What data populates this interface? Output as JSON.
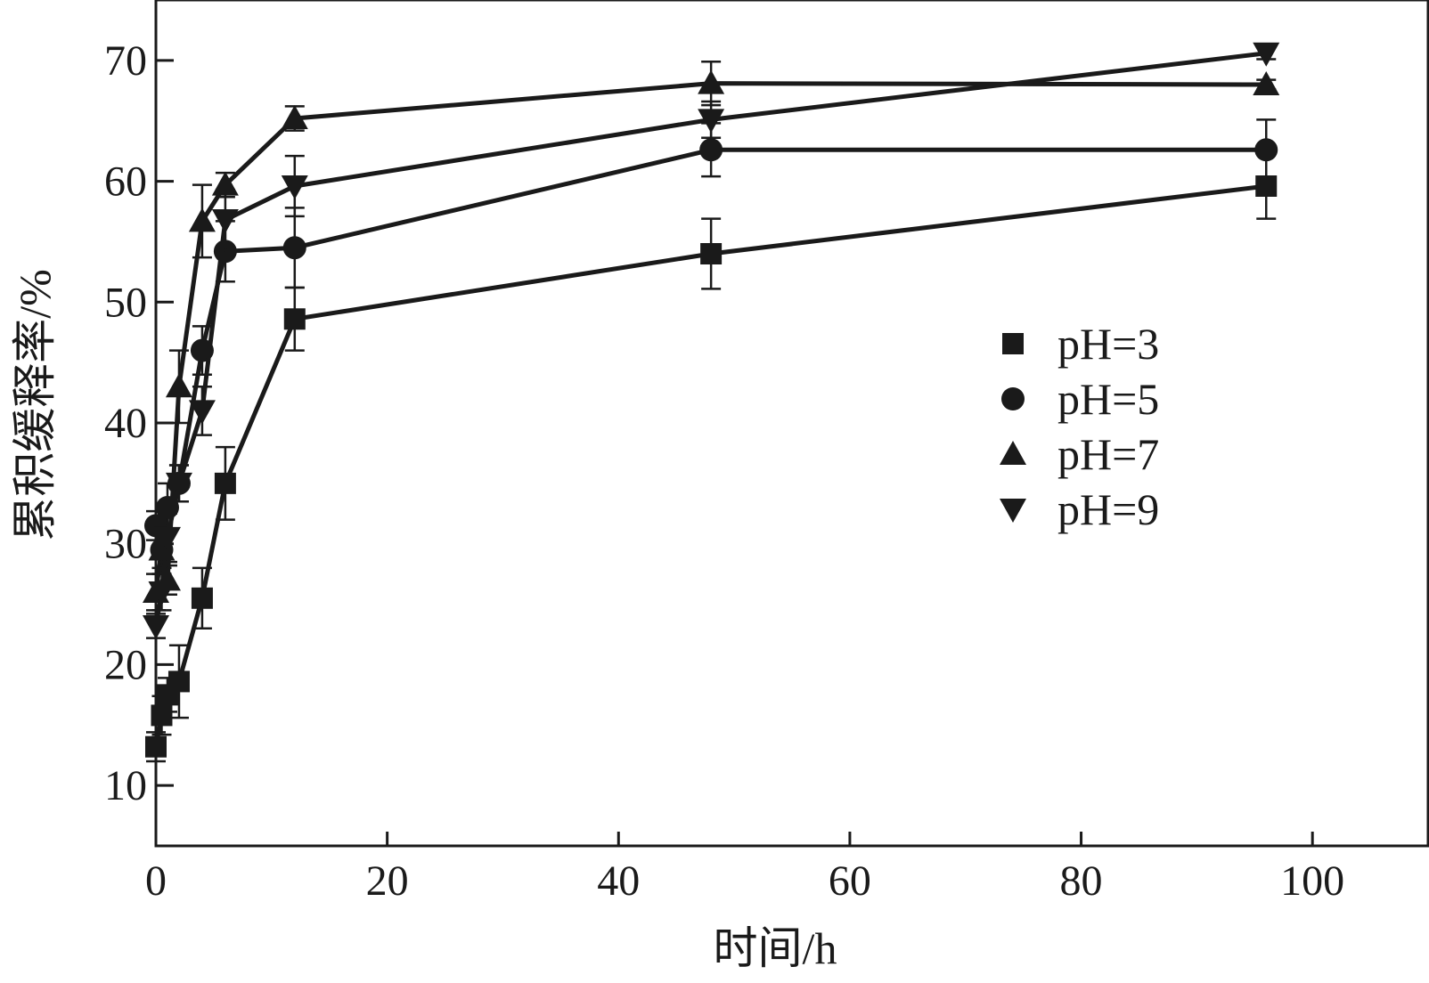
{
  "chart_data": {
    "type": "line",
    "title": "",
    "xlabel": "时间/h",
    "ylabel": "累积缓释率/%",
    "xlim": [
      0,
      110
    ],
    "ylim": [
      5,
      75
    ],
    "x_ticks": [
      0,
      20,
      40,
      60,
      80,
      100
    ],
    "y_ticks": [
      10,
      20,
      30,
      40,
      50,
      60,
      70
    ],
    "grid": false,
    "legend_position": "center-right",
    "x": [
      0,
      0.5,
      1,
      2,
      4,
      6,
      12,
      48,
      96
    ],
    "series": [
      {
        "name": "pH=3",
        "marker": "square",
        "values": [
          13.2,
          15.8,
          17.5,
          18.6,
          25.5,
          35.0,
          48.6,
          54.0,
          59.6
        ],
        "errors": [
          1.2,
          1.6,
          1.4,
          3.0,
          2.5,
          3.0,
          2.6,
          2.9,
          2.7
        ]
      },
      {
        "name": "pH=5",
        "marker": "circle",
        "values": [
          31.5,
          29.5,
          33.0,
          35.0,
          46.0,
          54.2,
          54.5,
          62.6,
          62.6
        ],
        "errors": [
          1.2,
          1.5,
          2.0,
          1.5,
          2.0,
          2.5,
          3.3,
          2.2,
          2.5
        ]
      },
      {
        "name": "pH=7",
        "marker": "triangle-up",
        "values": [
          26.0,
          29.5,
          27.0,
          43.0,
          56.7,
          59.7,
          65.2,
          68.1,
          68.0
        ],
        "errors": [
          1.5,
          2.0,
          1.2,
          3.0,
          3.0,
          1.0,
          1.0,
          1.8,
          0.4
        ]
      },
      {
        "name": "pH=9",
        "marker": "triangle-down",
        "values": [
          23.2,
          26.0,
          30.5,
          35.0,
          41.0,
          56.8,
          59.6,
          65.1,
          70.6
        ],
        "errors": [
          1.0,
          1.5,
          2.0,
          1.5,
          2.0,
          2.5,
          2.5,
          1.5,
          0.5
        ]
      }
    ]
  }
}
